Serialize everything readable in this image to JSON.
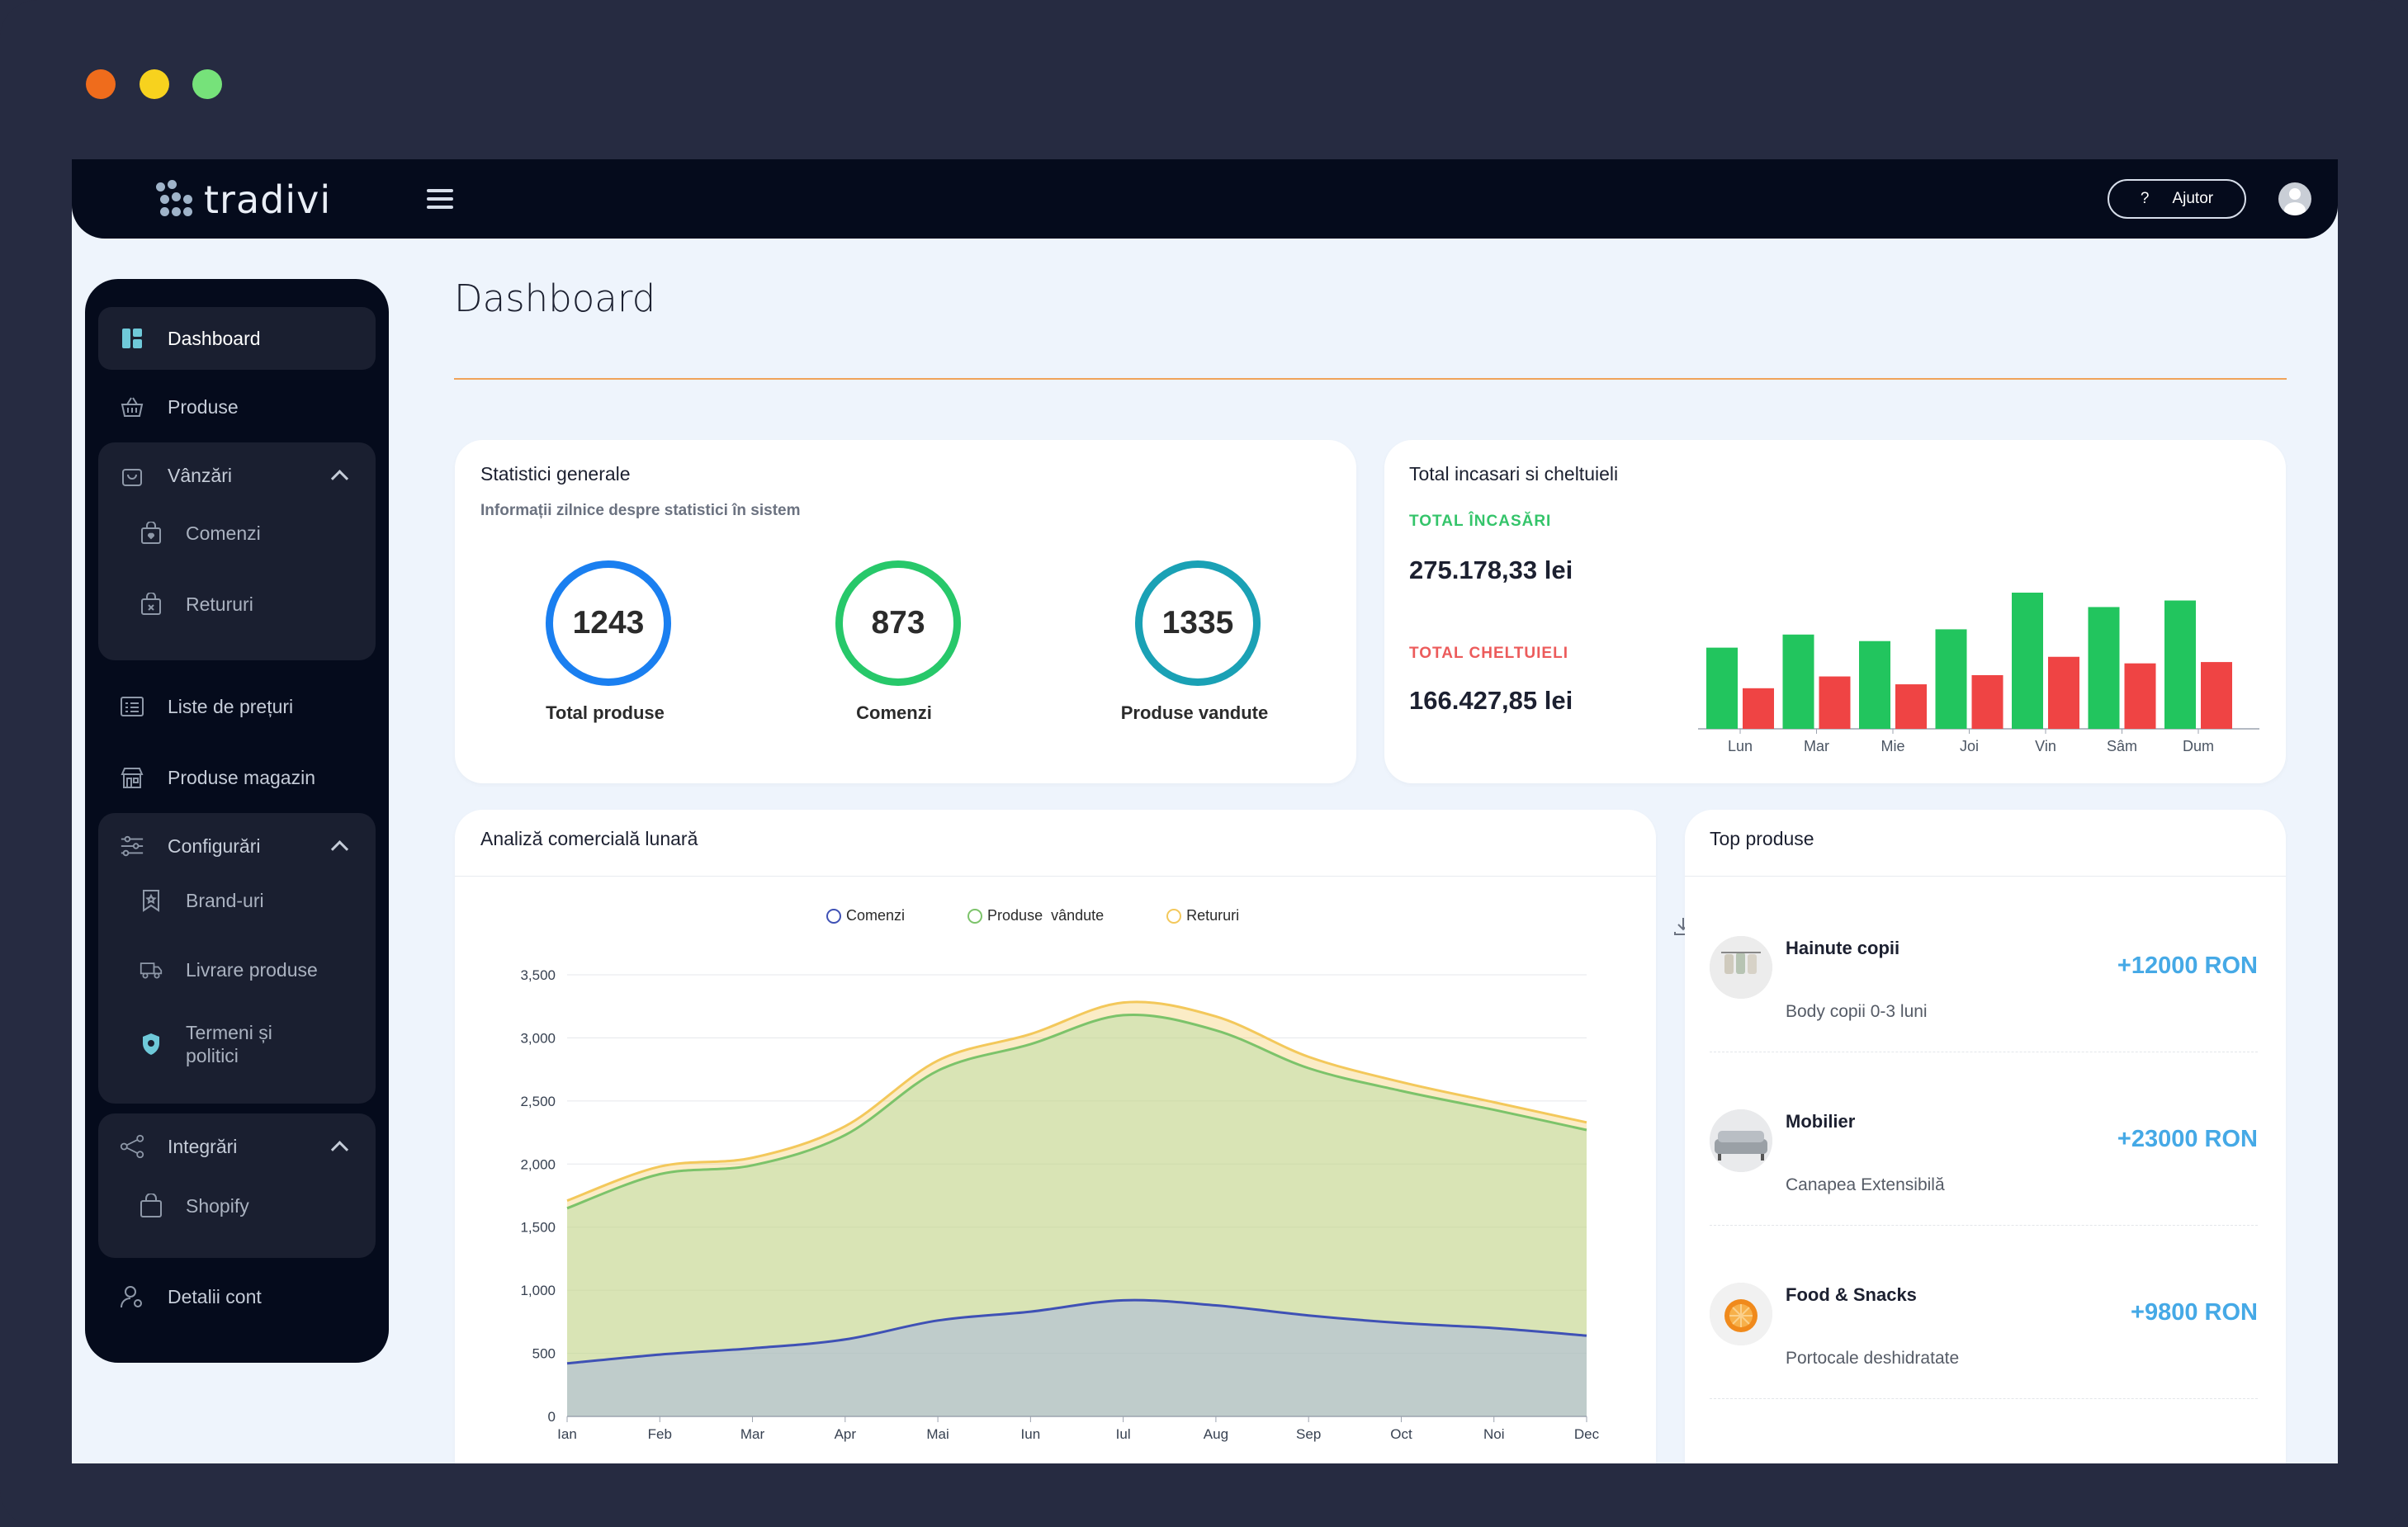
{
  "window_controls": {
    "colors": [
      "#ef6c1c",
      "#f7d21e",
      "#76e27a"
    ]
  },
  "topbar": {
    "logo_text": "tradivi",
    "help_icon_text": "?",
    "help_label": "Ajutor"
  },
  "sidebar": {
    "dashboard": "Dashboard",
    "produse": "Produse",
    "vanzari": "Vânzări",
    "comenzi": "Comenzi",
    "retururi": "Retururi",
    "liste_preturi": "Liste de prețuri",
    "produse_magazin": "Produse magazin",
    "configurari": "Configurări",
    "brand_uri": "Brand-uri",
    "livrare_produse": "Livrare produse",
    "termeni_line1": "Termeni și",
    "termeni_line2": "politici",
    "integrari": "Integrări",
    "shopify": "Shopify",
    "detalii_cont": "Detalii cont"
  },
  "page": {
    "title": "Dashboard"
  },
  "stats": {
    "title": "Statistici generale",
    "subtitle": "Informații zilnice despre statistici în sistem",
    "items": [
      {
        "value": "1243",
        "label": "Total produse",
        "color": "#1a7ff0"
      },
      {
        "value": "873",
        "label": "Comenzi",
        "color": "#27c86a"
      },
      {
        "value": "1335",
        "label": "Produse vandute",
        "color": "#1aa1b5"
      }
    ]
  },
  "revenue": {
    "title": "Total incasari si cheltuieli",
    "income_label": "TOTAL ÎNCASĂRI",
    "income_value": "275.178,33 lei",
    "expense_label": "TOTAL CHELTUIELI",
    "expense_value": "166.427,85 lei"
  },
  "monthly": {
    "title": "Analiză comercială lunară",
    "legend": [
      "Comenzi",
      "Produse  vândute",
      "Retururi"
    ],
    "yticks": [
      "3,500",
      "3,000",
      "2,500",
      "2,000",
      "1,500",
      "1,000",
      "500",
      "0"
    ]
  },
  "top_products": {
    "title": "Top produse",
    "items": [
      {
        "name": "Hainute copii",
        "desc": "Body copii 0-3 luni",
        "value": "+12000 RON"
      },
      {
        "name": "Mobilier",
        "desc": "Canapea Extensibilă",
        "value": "+23000 RON"
      },
      {
        "name": "Food & Snacks",
        "desc": "Portocale deshidratate",
        "value": "+9800 RON"
      }
    ]
  },
  "chart_data": [
    {
      "type": "bar",
      "categories": [
        "Lun",
        "Mar",
        "Mie",
        "Joi",
        "Vin",
        "Sâm",
        "Dum"
      ],
      "series": [
        {
          "values": [
            62,
            72,
            67,
            76,
            104,
            93,
            98
          ],
          "color": "#22c55e"
        },
        {
          "values": [
            31,
            40,
            34,
            41,
            55,
            50,
            51
          ],
          "color": "#ef4444"
        }
      ]
    },
    {
      "type": "area",
      "categories": [
        "Ian",
        "Feb",
        "Mar",
        "Apr",
        "Mai",
        "Iun",
        "Iul",
        "Aug",
        "Sep",
        "Oct",
        "Noi",
        "Dec"
      ],
      "ylim": [
        0,
        3500
      ],
      "series": [
        {
          "name": "Comenzi",
          "color": "#3f51b5",
          "values": [
            420,
            490,
            540,
            610,
            760,
            830,
            920,
            880,
            800,
            740,
            700,
            640
          ]
        },
        {
          "name": "Produse  vândute",
          "color": "#7cc36a",
          "values": [
            1650,
            1920,
            1990,
            2230,
            2740,
            2950,
            3180,
            3060,
            2760,
            2580,
            2430,
            2270
          ]
        },
        {
          "name": "Retururi",
          "color": "#f3c85b",
          "values": [
            1710,
            1980,
            2050,
            2300,
            2820,
            3030,
            3280,
            3170,
            2850,
            2650,
            2490,
            2330
          ]
        }
      ]
    }
  ]
}
